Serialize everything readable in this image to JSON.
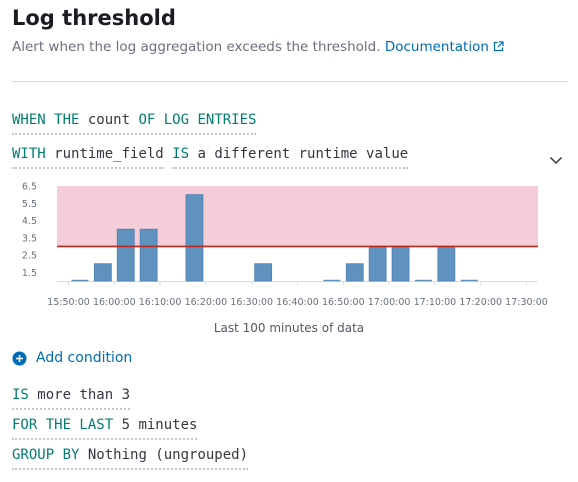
{
  "header": {
    "title": "Log threshold",
    "description": "Alert when the log aggregation exceeds the threshold.",
    "documentation_link": "Documentation",
    "external_link_icon": "popout-icon"
  },
  "expressions": {
    "when": {
      "keyword1": "WHEN THE",
      "aggregation": "count",
      "keyword2": "OF LOG ENTRIES"
    },
    "with": {
      "keyword": "WITH",
      "field": "runtime_field",
      "operator": "IS",
      "value": "a different runtime value",
      "chevron_icon": "chevron-down-icon"
    },
    "comparator": {
      "keyword": "IS",
      "value": "more than 3"
    },
    "time": {
      "keyword": "FOR THE LAST",
      "value": "5 minutes"
    },
    "group_by": {
      "keyword": "GROUP BY",
      "value": "Nothing (ungrouped)"
    }
  },
  "add_condition": {
    "label": "Add condition",
    "icon": "plus-in-circle-icon"
  },
  "chart_caption": "Last 100 minutes of data",
  "chart_data": {
    "type": "bar",
    "title": "",
    "xlabel": "Last 100 minutes of data",
    "ylabel": "",
    "ylim": [
      1,
      6.5
    ],
    "yticks": [
      "6.5",
      "5.5",
      "4.5",
      "3.5",
      "2.5",
      "1.5"
    ],
    "xticks": [
      "15:50:00",
      "16:00:00",
      "16:10:00",
      "16:20:00",
      "16:30:00",
      "16:40:00",
      "16:50:00",
      "17:00:00",
      "17:10:00",
      "17:20:00",
      "17:30:00"
    ],
    "threshold": 3,
    "threshold_color": "#bd271e",
    "threshold_area_color": "#f4cdd9",
    "bar_color": "#6092c0",
    "bars": [
      {
        "x": "15:52:30",
        "value": 1
      },
      {
        "x": "15:57:30",
        "value": 2
      },
      {
        "x": "16:02:30",
        "value": 4
      },
      {
        "x": "16:07:30",
        "value": 4
      },
      {
        "x": "16:17:30",
        "value": 6
      },
      {
        "x": "16:32:30",
        "value": 2
      },
      {
        "x": "16:47:30",
        "value": 1
      },
      {
        "x": "16:52:30",
        "value": 2
      },
      {
        "x": "16:57:30",
        "value": 3
      },
      {
        "x": "17:02:30",
        "value": 3
      },
      {
        "x": "17:07:30",
        "value": 1
      },
      {
        "x": "17:12:30",
        "value": 3
      },
      {
        "x": "17:17:30",
        "value": 1
      }
    ]
  }
}
